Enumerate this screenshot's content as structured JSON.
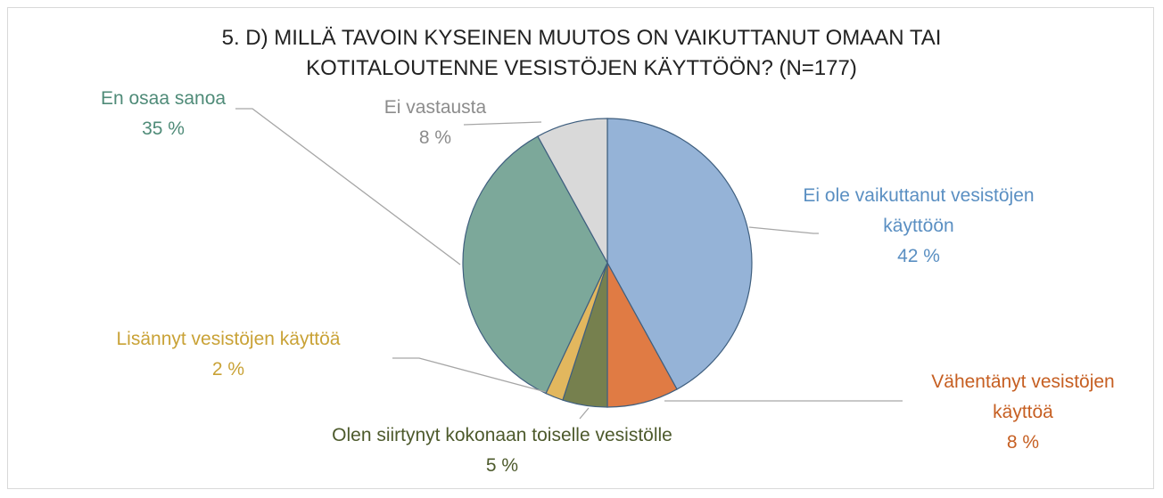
{
  "chart_data": {
    "type": "pie",
    "title": "5. D) MILLÄ TAVOIN KYSEINEN MUUTOS ON VAIKUTTANUT OMAAN TAI KOTITALOUTENNE VESISTÖJEN KÄYTTÖÖN? (N=177)",
    "categories": [
      "Ei ole vaikuttanut vesistöjen käyttöön",
      "Vähentänyt vesistöjen käyttöä",
      "Olen siirtynyt kokonaan toiselle vesistölle",
      "Lisännyt vesistöjen käyttöä",
      "En osaa sanoa",
      "Ei vastausta"
    ],
    "values": [
      42,
      8,
      5,
      2,
      35,
      8
    ],
    "value_labels": [
      "42 %",
      "8 %",
      "5 %",
      "2 %",
      "35 %",
      "8 %"
    ],
    "colors": [
      "#95b3d7",
      "#e07b44",
      "#76804e",
      "#e2b75e",
      "#7ca89a",
      "#d9d9d9"
    ],
    "label_colors": [
      "#5a8fc2",
      "#c65f22",
      "#4d5a2c",
      "#c9a236",
      "#4f8b78",
      "#8c8c8c"
    ]
  }
}
